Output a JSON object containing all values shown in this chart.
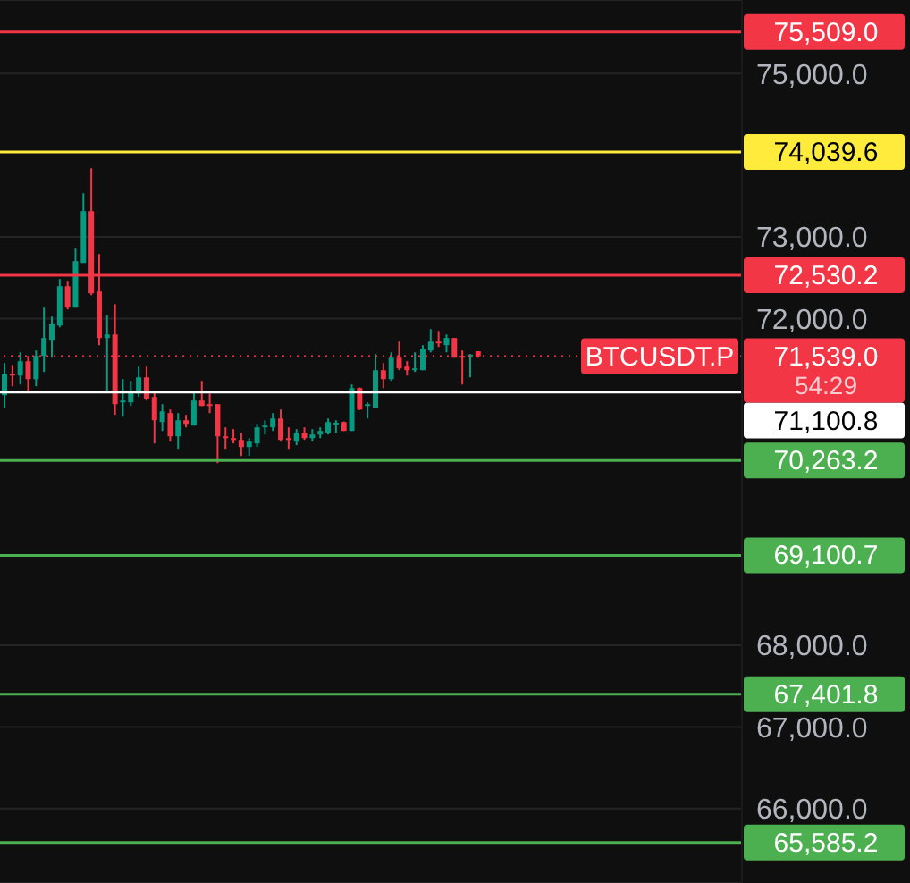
{
  "chart_data": {
    "type": "candlestick",
    "categories": [
      null,
      null,
      null,
      null,
      null,
      null,
      null,
      null,
      null,
      null,
      null,
      null,
      null,
      null,
      null,
      null,
      null,
      null,
      null,
      null,
      null,
      null,
      null,
      null,
      null,
      null,
      null,
      null,
      null,
      null,
      null,
      null,
      null,
      null,
      null,
      null,
      null,
      null,
      null,
      null,
      null,
      null,
      null,
      null,
      null,
      null,
      null,
      null,
      null,
      null,
      null,
      null,
      null,
      null,
      null,
      null,
      null,
      null,
      null,
      null,
      null,
      null,
      null,
      null,
      null,
      null,
      null,
      null,
      null,
      null,
      null,
      null,
      null,
      null,
      null,
      null,
      null,
      null,
      null,
      null,
      null,
      null,
      null,
      null,
      null,
      null,
      null,
      null,
      null,
      null,
      null,
      null,
      null,
      null
    ],
    "ohlc": [
      [
        71062,
        71455,
        70908,
        71324
      ],
      [
        71324,
        71433,
        71171,
        71313
      ],
      [
        71302,
        71587,
        71193,
        71477
      ],
      [
        71477,
        71543,
        71105,
        71258
      ],
      [
        71258,
        71609,
        71171,
        71543
      ],
      [
        71543,
        72134,
        71346,
        71762
      ],
      [
        71740,
        72024,
        71521,
        71937
      ],
      [
        71915,
        72484,
        71893,
        72396
      ],
      [
        72396,
        72462,
        72112,
        72134
      ],
      [
        72134,
        72856,
        72134,
        72703
      ],
      [
        72681,
        73534,
        72681,
        73315
      ],
      [
        73315,
        73840,
        72287,
        72309
      ],
      [
        72331,
        72790,
        71674,
        71762
      ],
      [
        71762,
        72046,
        71105,
        71805
      ],
      [
        71805,
        72177,
        70821,
        70952
      ],
      [
        70974,
        71258,
        70799,
        70996
      ],
      [
        70974,
        71237,
        70930,
        71105
      ],
      [
        71083,
        71412,
        71040,
        71280
      ],
      [
        71280,
        71412,
        70996,
        71018
      ],
      [
        71040,
        71105,
        70471,
        70755
      ],
      [
        70733,
        70952,
        70624,
        70865
      ],
      [
        70843,
        70886,
        70493,
        70558
      ],
      [
        70558,
        70843,
        70405,
        70755
      ],
      [
        70755,
        70821,
        70668,
        70711
      ],
      [
        70690,
        71105,
        70690,
        70996
      ],
      [
        70996,
        71237,
        70930,
        70930
      ],
      [
        70952,
        71083,
        70843,
        70930
      ],
      [
        70952,
        70952,
        70230,
        70558
      ],
      [
        70558,
        70668,
        70405,
        70536
      ],
      [
        70536,
        70646,
        70471,
        70529
      ],
      [
        70515,
        70602,
        70318,
        70427
      ],
      [
        70427,
        70536,
        70318,
        70493
      ],
      [
        70471,
        70711,
        70427,
        70668
      ],
      [
        70668,
        70755,
        70580,
        70690
      ],
      [
        70668,
        70843,
        70624,
        70777
      ],
      [
        70777,
        70886,
        70493,
        70515
      ],
      [
        70536,
        70668,
        70405,
        70529
      ],
      [
        70493,
        70646,
        70449,
        70602
      ],
      [
        70602,
        70668,
        70515,
        70536
      ],
      [
        70536,
        70646,
        70493,
        70580
      ],
      [
        70580,
        70668,
        70536,
        70624
      ],
      [
        70602,
        70777,
        70580,
        70733
      ],
      [
        70711,
        70755,
        70602,
        70725
      ],
      [
        70733,
        70740,
        70624,
        70624
      ],
      [
        70624,
        71193,
        70624,
        71149
      ],
      [
        71149,
        71156,
        70880,
        70886
      ],
      [
        70930,
        70974,
        70777,
        70952
      ],
      [
        70908,
        71565,
        70908,
        71368
      ],
      [
        71368,
        71455,
        71149,
        71258
      ],
      [
        71258,
        71587,
        71237,
        71521
      ],
      [
        71521,
        71718,
        71368,
        71390
      ],
      [
        71412,
        71477,
        71302,
        71368
      ],
      [
        71368,
        71587,
        71346,
        71390
      ],
      [
        71368,
        71674,
        71368,
        71630
      ],
      [
        71609,
        71871,
        71587,
        71718
      ],
      [
        71718,
        71849,
        71652,
        71696
      ],
      [
        71674,
        71805,
        71587,
        71762
      ],
      [
        71762,
        71762,
        71521,
        71521
      ],
      [
        71543,
        71609,
        71193,
        71521
      ],
      [
        71543,
        71565,
        71280,
        71558
      ],
      [
        71600,
        71600,
        71520,
        71539
      ],
      null,
      null,
      null,
      null,
      null,
      null,
      null,
      null,
      null,
      null,
      null,
      null,
      null,
      null,
      null,
      null,
      null,
      null,
      null,
      null,
      null,
      null,
      null,
      null,
      null,
      null,
      null,
      null,
      null,
      null,
      null,
      null,
      null
    ],
    "colors": [
      "#089981",
      "#f23645",
      "#089981",
      "#f23645",
      "#089981",
      "#089981",
      "#089981",
      "#089981",
      "#f23645",
      "#089981",
      "#089981",
      "#f23645",
      "#f23645",
      "#089981",
      "#f23645",
      "#089981",
      "#089981",
      "#089981",
      "#f23645",
      "#f23645",
      "#089981",
      "#f23645",
      "#089981",
      "#f23645",
      "#089981",
      "#f23645",
      "#f23645",
      "#f23645",
      "#f23645",
      "#f23645",
      "#f23645",
      "#089981",
      "#089981",
      "#089981",
      "#089981",
      "#f23645",
      "#f23645",
      "#089981",
      "#f23645",
      "#089981",
      "#089981",
      "#089981",
      "#089981",
      "#f23645",
      "#089981",
      "#f23645",
      "#089981",
      "#089981",
      "#f23645",
      "#089981",
      "#f23645",
      "#f23645",
      "#089981",
      "#089981",
      "#089981",
      "#f23645",
      "#089981",
      "#f23645",
      "#f23645",
      "#089981",
      "#f23645",
      null,
      null,
      null,
      null,
      null,
      null,
      null,
      null,
      null,
      null,
      null,
      null,
      null,
      null,
      null,
      null,
      null,
      null,
      null,
      null,
      null,
      null,
      null,
      null,
      null,
      null,
      null,
      null,
      null,
      null,
      null,
      null,
      null
    ],
    "ylim": [
      65090,
      75900
    ],
    "yticks": [
      {
        "value": 66000,
        "label": "66,000.0"
      },
      {
        "value": 67000,
        "label": "67,000.0"
      },
      {
        "value": 68000,
        "label": "68,000.0"
      },
      {
        "value": 72000,
        "label": "72,000.0"
      },
      {
        "value": 73000,
        "label": "73,000.0"
      },
      {
        "value": 75000,
        "label": "75,000.0"
      }
    ],
    "grid": "y",
    "tick_labels": "y",
    "ref_lines": [
      {
        "axis": "y",
        "value": 75509,
        "label": "75,509.0",
        "color": "#f23645"
      },
      {
        "axis": "y",
        "value": 74039.6,
        "label": "74,039.6",
        "color": "#ffeb3b"
      },
      {
        "axis": "y",
        "value": 72530.2,
        "label": "72,530.2",
        "color": "#f23645"
      },
      {
        "axis": "y",
        "value": 71539,
        "label": "71,539.0",
        "color": "#f23645",
        "line_style": "dotted"
      },
      {
        "axis": "y",
        "value": 71100.8,
        "label": "71,100.8",
        "color": "#ffffff"
      },
      {
        "axis": "y",
        "value": 70263.2,
        "label": "70,263.2",
        "color": "#4caf50"
      },
      {
        "axis": "y",
        "value": 69100.7,
        "label": "69,100.7",
        "color": "#4caf50"
      },
      {
        "axis": "y",
        "value": 67401.8,
        "label": "67,401.8",
        "color": "#4caf50"
      },
      {
        "axis": "y",
        "value": 65585.2,
        "label": "65,585.2",
        "color": "#4caf50"
      }
    ],
    "annotations": [
      {
        "text": "BTCUSDT.P",
        "y": 71539
      },
      "54:29"
    ]
  }
}
